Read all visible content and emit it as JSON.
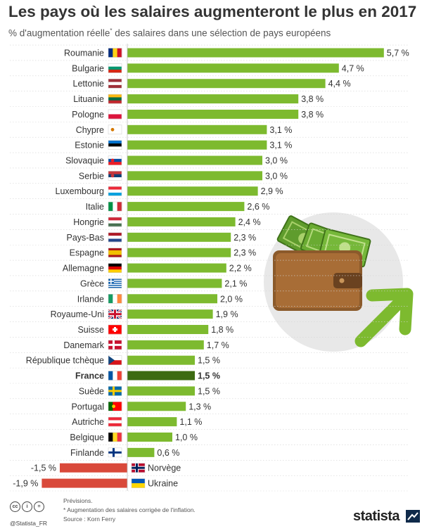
{
  "header": {
    "title": "Les pays où les salaires augmenteront le plus en 2017",
    "subtitle_before": "% d'augmentation réelle",
    "subtitle_sup": "*",
    "subtitle_after": " des salaires dans une sélection de pays européens"
  },
  "chart_data": {
    "type": "bar",
    "orientation": "horizontal",
    "title": "Les pays où les salaires augmenteront le plus en 2017",
    "subtitle": "% d'augmentation réelle* des salaires dans une sélection de pays européens",
    "categories": [
      "Roumanie",
      "Bulgarie",
      "Lettonie",
      "Lituanie",
      "Pologne",
      "Chypre",
      "Estonie",
      "Slovaquie",
      "Serbie",
      "Luxembourg",
      "Italie",
      "Hongrie",
      "Pays-Bas",
      "Espagne",
      "Allemagne",
      "Grèce",
      "Irlande",
      "Royaume-Uni",
      "Suisse",
      "Danemark",
      "République tchèque",
      "France",
      "Suède",
      "Portugal",
      "Autriche",
      "Belgique",
      "Finlande",
      "Norvège",
      "Ukraine"
    ],
    "values": [
      5.7,
      4.7,
      4.4,
      3.8,
      3.8,
      3.1,
      3.1,
      3.0,
      3.0,
      2.9,
      2.6,
      2.4,
      2.3,
      2.3,
      2.2,
      2.1,
      2.0,
      1.9,
      1.8,
      1.7,
      1.5,
      1.5,
      1.5,
      1.3,
      1.1,
      1.0,
      0.6,
      -1.5,
      -1.9
    ],
    "value_labels": [
      "5,7 %",
      "4,7 %",
      "4,4 %",
      "3,8 %",
      "3,8 %",
      "3,1 %",
      "3,1 %",
      "3,0 %",
      "3,0 %",
      "2,9 %",
      "2,6 %",
      "2,4 %",
      "2,3 %",
      "2,3 %",
      "2,2 %",
      "2,1 %",
      "2,0 %",
      "1,9 %",
      "1,8 %",
      "1,7 %",
      "1,5 %",
      "1,5 %",
      "1,5 %",
      "1,3 %",
      "1,1 %",
      "1,0 %",
      "0,6 %",
      "-1,5 %",
      "-1,9 %"
    ],
    "highlight": "France",
    "colors": {
      "positive": "#7dba2f",
      "highlight": "#3d6b12",
      "negative": "#d9493a"
    },
    "flags": {
      "Roumanie": {
        "dir": "v",
        "c": [
          "#002b7f",
          "#fcd116",
          "#ce1126"
        ]
      },
      "Bulgarie": {
        "dir": "h",
        "c": [
          "#ffffff",
          "#00966e",
          "#d62612"
        ]
      },
      "Lettonie": {
        "dir": "h",
        "c": [
          "#9e3039",
          "#ffffff",
          "#9e3039"
        ]
      },
      "Lituanie": {
        "dir": "h",
        "c": [
          "#fdb913",
          "#006a44",
          "#c1272d"
        ]
      },
      "Pologne": {
        "dir": "h",
        "c": [
          "#ffffff",
          "#dc143c"
        ]
      },
      "Chypre": {
        "dir": "h",
        "c": [
          "#ffffff"
        ],
        "emb": "#d57800"
      },
      "Estonie": {
        "dir": "h",
        "c": [
          "#0072ce",
          "#000000",
          "#ffffff"
        ]
      },
      "Slovaquie": {
        "dir": "h",
        "c": [
          "#ffffff",
          "#0b4ea2",
          "#ee1c25"
        ],
        "emb": "#ee1c25"
      },
      "Serbie": {
        "dir": "h",
        "c": [
          "#c6363c",
          "#0c4076",
          "#ffffff"
        ],
        "emb": "#c6363c"
      },
      "Luxembourg": {
        "dir": "h",
        "c": [
          "#ed2939",
          "#ffffff",
          "#00a1de"
        ]
      },
      "Italie": {
        "dir": "v",
        "c": [
          "#009246",
          "#ffffff",
          "#ce2b37"
        ]
      },
      "Hongrie": {
        "dir": "h",
        "c": [
          "#ce2939",
          "#ffffff",
          "#477050"
        ]
      },
      "Pays-Bas": {
        "dir": "h",
        "c": [
          "#ae1c28",
          "#ffffff",
          "#21468b"
        ]
      },
      "Espagne": {
        "dir": "h",
        "c": [
          "#aa151b",
          "#f1bf00",
          "#f1bf00",
          "#aa151b"
        ]
      },
      "Allemagne": {
        "dir": "h",
        "c": [
          "#000000",
          "#dd0000",
          "#ffce00"
        ]
      },
      "Grèce": {
        "dir": "h",
        "c": [
          "#0d5eaf",
          "#ffffff",
          "#0d5eaf",
          "#ffffff",
          "#0d5eaf",
          "#ffffff",
          "#0d5eaf",
          "#ffffff",
          "#0d5eaf"
        ],
        "canton": "cross"
      },
      "Irlande": {
        "dir": "v",
        "c": [
          "#169b62",
          "#ffffff",
          "#ff883e"
        ]
      },
      "Royaume-Uni": {
        "dir": "h",
        "c": [
          "#012169"
        ],
        "uk": true
      },
      "Suisse": {
        "dir": "h",
        "c": [
          "#ff0000"
        ],
        "ch": true
      },
      "Danemark": {
        "dir": "h",
        "c": [
          "#c8102e"
        ],
        "nordic": "#ffffff"
      },
      "République tchèque": {
        "dir": "h",
        "c": [
          "#ffffff",
          "#d7141a"
        ],
        "tri": "#11457e"
      },
      "France": {
        "dir": "v",
        "c": [
          "#0055a4",
          "#ffffff",
          "#ef4135"
        ]
      },
      "Suède": {
        "dir": "h",
        "c": [
          "#006aa7"
        ],
        "nordic": "#fecc00"
      },
      "Portugal": {
        "dir": "v",
        "c": [
          "#006600",
          "#ff0000",
          "#ff0000"
        ],
        "emb": "#ffcc00"
      },
      "Autriche": {
        "dir": "h",
        "c": [
          "#ed2939",
          "#ffffff",
          "#ed2939"
        ]
      },
      "Belgique": {
        "dir": "v",
        "c": [
          "#000000",
          "#fdda24",
          "#ef3340"
        ]
      },
      "Finlande": {
        "dir": "h",
        "c": [
          "#ffffff"
        ],
        "nordic": "#003580"
      },
      "Norvège": {
        "dir": "h",
        "c": [
          "#ba0c2f"
        ],
        "nordic": "#00205b",
        "border": "#ffffff"
      },
      "Ukraine": {
        "dir": "h",
        "c": [
          "#0057b7",
          "#ffd700"
        ]
      }
    }
  },
  "illustration": {
    "name": "wallet-with-money-and-arrow"
  },
  "footer": {
    "cc_icons": [
      "cc",
      "i",
      "="
    ],
    "credit": "@Statista_FR",
    "notes": [
      "Prévisions.",
      "* Augmentation des salaires corrigée de l'inflation.",
      "Source : Korn Ferry"
    ],
    "brand": "statista"
  }
}
